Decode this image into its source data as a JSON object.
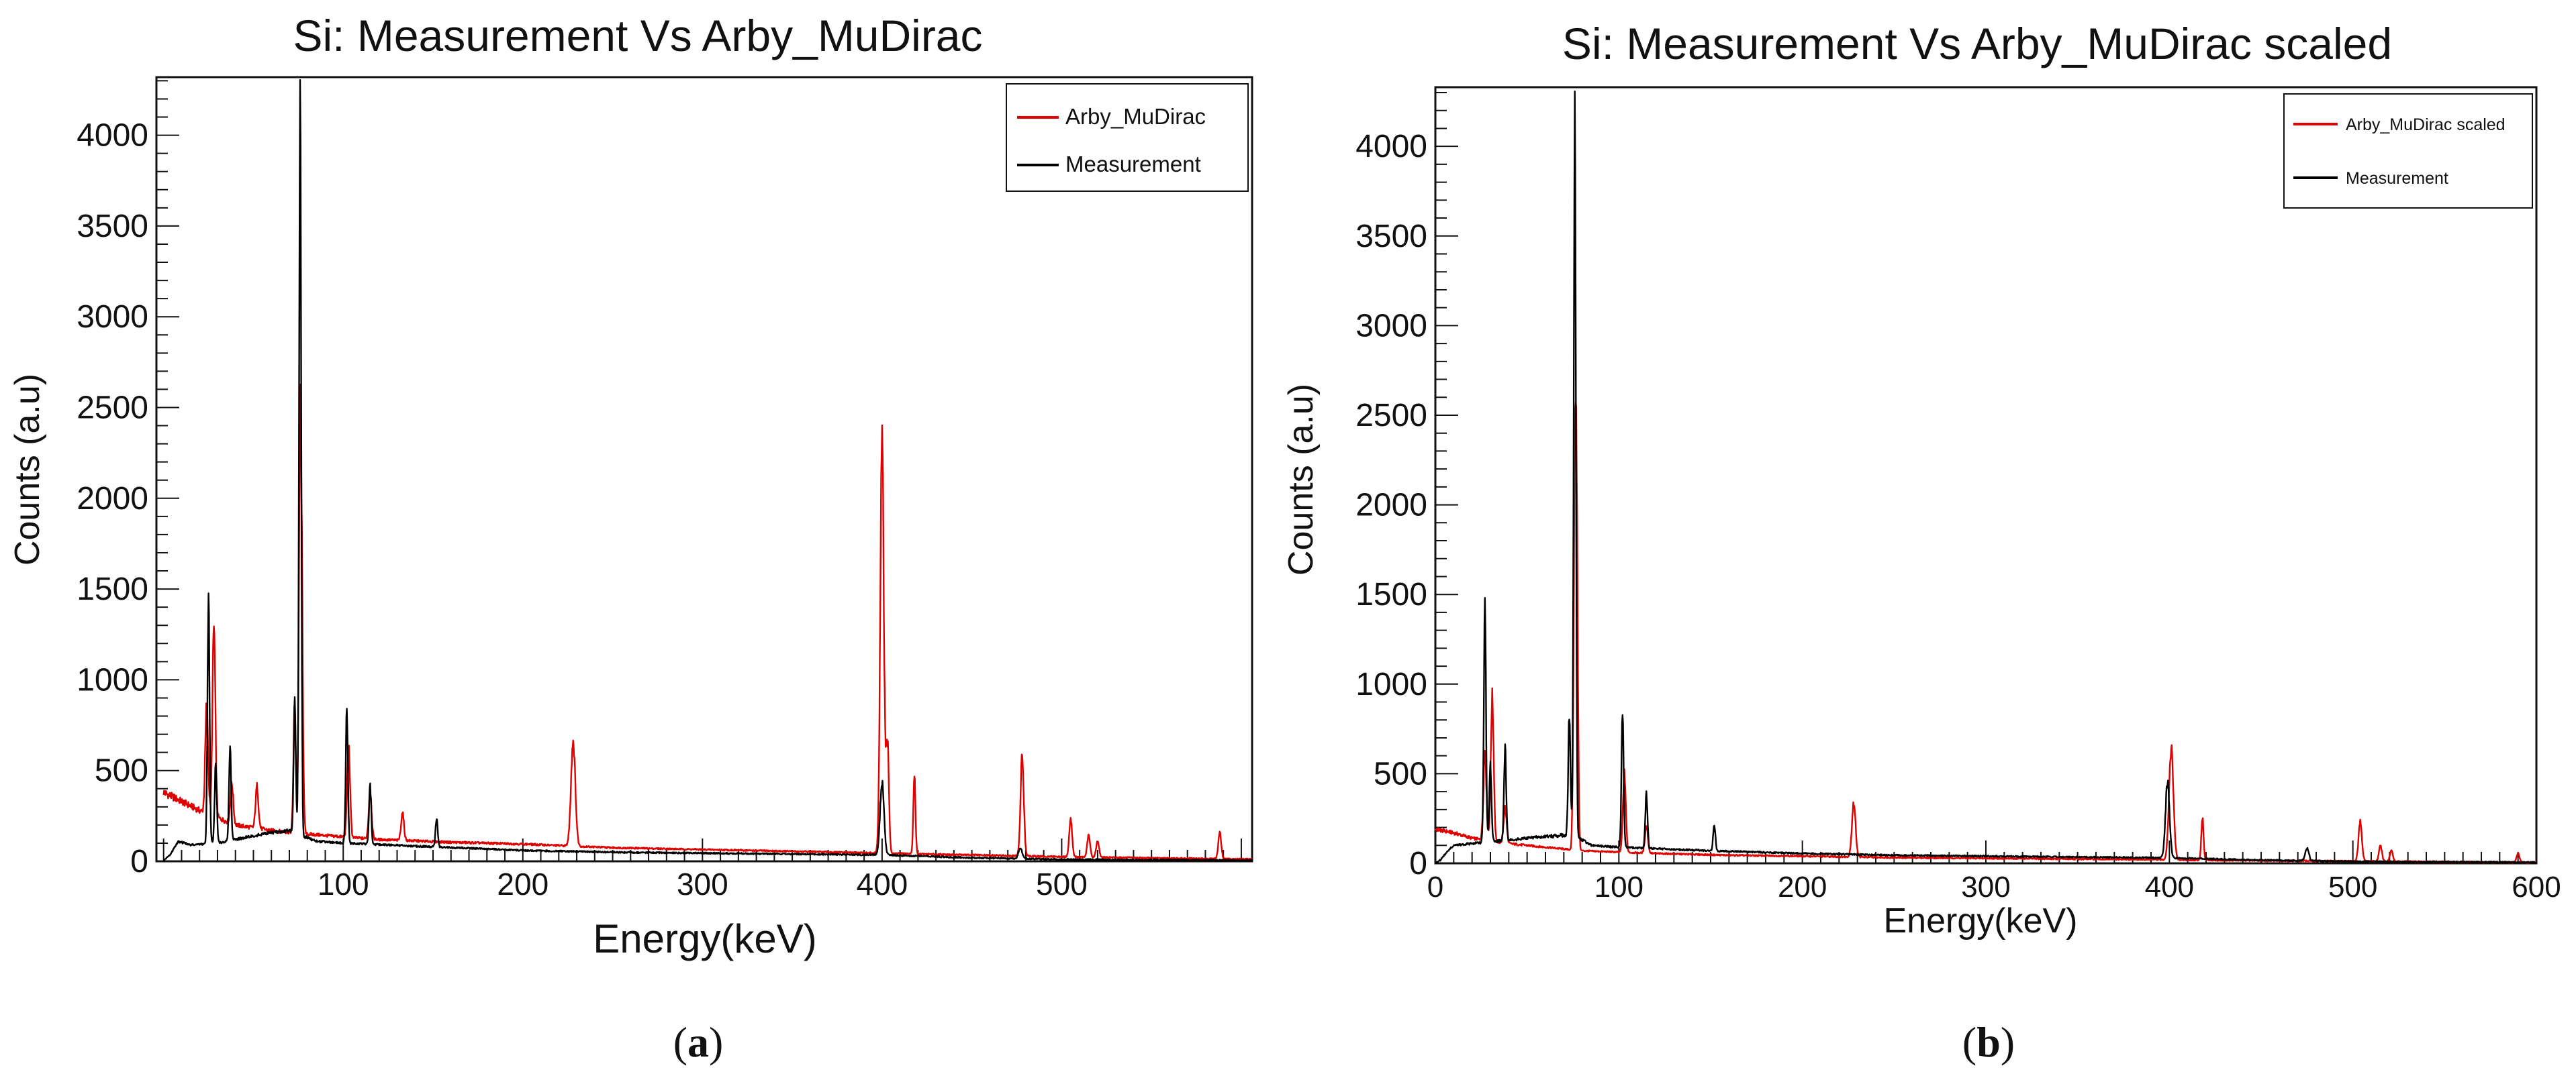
{
  "figure": {
    "captions": [
      "(a)",
      "(b)"
    ],
    "caption_parts": [
      {
        "open": "(",
        "letter": "a",
        "close": ")"
      },
      {
        "open": "(",
        "letter": "b",
        "close": ")"
      }
    ]
  },
  "colors": {
    "measurement": "#000000",
    "theory": "#e00000",
    "axis": "#111111"
  },
  "chart_data": [
    {
      "type": "line",
      "title": "Si: Measurement Vs Arby_MuDirac",
      "xlabel": "Energy(keV)",
      "ylabel": "Counts (a.u)",
      "xlim": [
        -4,
        606
      ],
      "ylim": [
        0,
        4320
      ],
      "xticks": [
        100,
        200,
        300,
        400,
        500
      ],
      "xtick_labels": [
        "100",
        "200",
        "300",
        "400",
        "500"
      ],
      "yticks": [
        0,
        500,
        1000,
        1500,
        2000,
        2500,
        3000,
        3500,
        4000
      ],
      "ytick_labels": [
        "0",
        "500",
        "1000",
        "1500",
        "2000",
        "2500",
        "3000",
        "3500",
        "4000"
      ],
      "legend": {
        "position": "top-right",
        "entries": [
          {
            "label": "Arby_MuDirac",
            "color": "#e00000"
          },
          {
            "label": "Measurement",
            "color": "#000000"
          }
        ]
      },
      "series": [
        {
          "name": "Arby_MuDirac",
          "color": "#e00000",
          "baseline": [
            [
              0,
              380
            ],
            [
              10,
              330
            ],
            [
              20,
              280
            ],
            [
              40,
              200
            ],
            [
              60,
              170
            ],
            [
              80,
              150
            ],
            [
              120,
              120
            ],
            [
              160,
              105
            ],
            [
              200,
              95
            ],
            [
              250,
              75
            ],
            [
              300,
              65
            ],
            [
              350,
              55
            ],
            [
              400,
              45
            ],
            [
              450,
              35
            ],
            [
              500,
              25
            ],
            [
              550,
              18
            ],
            [
              600,
              12
            ]
          ],
          "peaks": [
            {
              "x": 24,
              "y": 600,
              "w": 0.8
            },
            {
              "x": 28,
              "y": 1040,
              "w": 0.8
            },
            {
              "x": 38,
              "y": 220,
              "w": 0.8
            },
            {
              "x": 52,
              "y": 230,
              "w": 0.8
            },
            {
              "x": 73,
              "y": 700,
              "w": 0.7
            },
            {
              "x": 76,
              "y": 2000,
              "w": 0.7
            },
            {
              "x": 77,
              "y": 880,
              "w": 0.7
            },
            {
              "x": 103,
              "y": 500,
              "w": 0.8
            },
            {
              "x": 115,
              "y": 260,
              "w": 0.8
            },
            {
              "x": 133,
              "y": 150,
              "w": 0.8
            },
            {
              "x": 228,
              "y": 580,
              "w": 1.2
            },
            {
              "x": 400,
              "y": 2250,
              "w": 1.0
            },
            {
              "x": 403,
              "y": 600,
              "w": 0.8
            },
            {
              "x": 418,
              "y": 420,
              "w": 0.6
            },
            {
              "x": 478,
              "y": 550,
              "w": 0.9
            },
            {
              "x": 505,
              "y": 210,
              "w": 0.8
            },
            {
              "x": 515,
              "y": 120,
              "w": 0.8
            },
            {
              "x": 520,
              "y": 90,
              "w": 0.8
            },
            {
              "x": 588,
              "y": 150,
              "w": 0.8
            }
          ]
        },
        {
          "name": "Measurement",
          "color": "#000000",
          "baseline": [
            [
              0,
              0
            ],
            [
              4,
              40
            ],
            [
              8,
              110
            ],
            [
              15,
              90
            ],
            [
              30,
              100
            ],
            [
              40,
              120
            ],
            [
              55,
              150
            ],
            [
              70,
              170
            ],
            [
              85,
              110
            ],
            [
              100,
              100
            ],
            [
              150,
              80
            ],
            [
              200,
              60
            ],
            [
              250,
              50
            ],
            [
              300,
              45
            ],
            [
              350,
              40
            ],
            [
              400,
              35
            ],
            [
              450,
              20
            ],
            [
              500,
              10
            ],
            [
              550,
              8
            ],
            [
              600,
              5
            ]
          ],
          "peaks": [
            {
              "x": 25,
              "y": 1300,
              "w": 0.6
            },
            {
              "x": 29,
              "y": 430,
              "w": 0.6
            },
            {
              "x": 37,
              "y": 500,
              "w": 0.6
            },
            {
              "x": 76,
              "y": 3930,
              "w": 0.6
            },
            {
              "x": 73,
              "y": 700,
              "w": 0.6
            },
            {
              "x": 102,
              "y": 720,
              "w": 0.6
            },
            {
              "x": 115,
              "y": 320,
              "w": 0.6
            },
            {
              "x": 152,
              "y": 160,
              "w": 0.6
            },
            {
              "x": 400,
              "y": 400,
              "w": 1.1
            },
            {
              "x": 477,
              "y": 60,
              "w": 1.0
            }
          ]
        }
      ]
    },
    {
      "type": "line",
      "title": "Si: Measurement Vs Arby_MuDirac scaled",
      "xlabel": "Energy(keV)",
      "ylabel": "Counts (a.u)",
      "xlim": [
        0,
        600
      ],
      "ylim": [
        0,
        4330
      ],
      "xticks": [
        0,
        100,
        200,
        300,
        400,
        500,
        600
      ],
      "xtick_labels": [
        "0",
        "100",
        "200",
        "300",
        "400",
        "500",
        "600"
      ],
      "yticks": [
        0,
        500,
        1000,
        1500,
        2000,
        2500,
        3000,
        3500,
        4000
      ],
      "ytick_labels": [
        "0",
        "500",
        "1000",
        "1500",
        "2000",
        "2500",
        "3000",
        "3500",
        "4000"
      ],
      "legend": {
        "position": "top-right",
        "entries": [
          {
            "label": "Arby_MuDirac scaled",
            "color": "#e00000"
          },
          {
            "label": "Measurement",
            "color": "#000000"
          }
        ]
      },
      "series": [
        {
          "name": "Arby_MuDirac scaled",
          "color": "#e00000",
          "baseline": [
            [
              0,
              190
            ],
            [
              10,
              170
            ],
            [
              20,
              140
            ],
            [
              40,
              110
            ],
            [
              60,
              90
            ],
            [
              80,
              70
            ],
            [
              120,
              55
            ],
            [
              160,
              45
            ],
            [
              200,
              40
            ],
            [
              250,
              32
            ],
            [
              300,
              28
            ],
            [
              350,
              24
            ],
            [
              400,
              20
            ],
            [
              450,
              15
            ],
            [
              500,
              12
            ],
            [
              550,
              8
            ],
            [
              600,
              5
            ]
          ],
          "peaks": [
            {
              "x": 27,
              "y": 510,
              "w": 0.8
            },
            {
              "x": 31,
              "y": 800,
              "w": 0.8
            },
            {
              "x": 38,
              "y": 200,
              "w": 0.8
            },
            {
              "x": 76,
              "y": 1830,
              "w": 0.7
            },
            {
              "x": 77,
              "y": 1550,
              "w": 0.7
            },
            {
              "x": 103,
              "y": 440,
              "w": 0.8
            },
            {
              "x": 115,
              "y": 150,
              "w": 0.8
            },
            {
              "x": 228,
              "y": 300,
              "w": 1.0
            },
            {
              "x": 401,
              "y": 620,
              "w": 1.2
            },
            {
              "x": 418,
              "y": 240,
              "w": 0.6
            },
            {
              "x": 504,
              "y": 220,
              "w": 0.9
            },
            {
              "x": 515,
              "y": 90,
              "w": 0.8
            },
            {
              "x": 521,
              "y": 60,
              "w": 0.8
            },
            {
              "x": 590,
              "y": 50,
              "w": 0.8
            }
          ]
        },
        {
          "name": "Measurement",
          "color": "#000000",
          "baseline": [
            [
              0,
              0
            ],
            [
              3,
              20
            ],
            [
              6,
              60
            ],
            [
              10,
              100
            ],
            [
              20,
              110
            ],
            [
              40,
              130
            ],
            [
              60,
              150
            ],
            [
              75,
              160
            ],
            [
              85,
              100
            ],
            [
              100,
              90
            ],
            [
              150,
              70
            ],
            [
              200,
              55
            ],
            [
              250,
              45
            ],
            [
              300,
              40
            ],
            [
              350,
              35
            ],
            [
              400,
              30
            ],
            [
              450,
              18
            ],
            [
              500,
              10
            ],
            [
              550,
              8
            ],
            [
              600,
              5
            ]
          ],
          "peaks": [
            {
              "x": 27,
              "y": 1300,
              "w": 0.6
            },
            {
              "x": 30,
              "y": 420,
              "w": 0.6
            },
            {
              "x": 38,
              "y": 510,
              "w": 0.6
            },
            {
              "x": 76,
              "y": 3940,
              "w": 0.6
            },
            {
              "x": 73,
              "y": 650,
              "w": 0.6
            },
            {
              "x": 102,
              "y": 720,
              "w": 0.6
            },
            {
              "x": 115,
              "y": 300,
              "w": 0.6
            },
            {
              "x": 152,
              "y": 150,
              "w": 0.6
            },
            {
              "x": 399,
              "y": 420,
              "w": 1.1
            },
            {
              "x": 475,
              "y": 70,
              "w": 1.0
            }
          ]
        }
      ]
    }
  ]
}
